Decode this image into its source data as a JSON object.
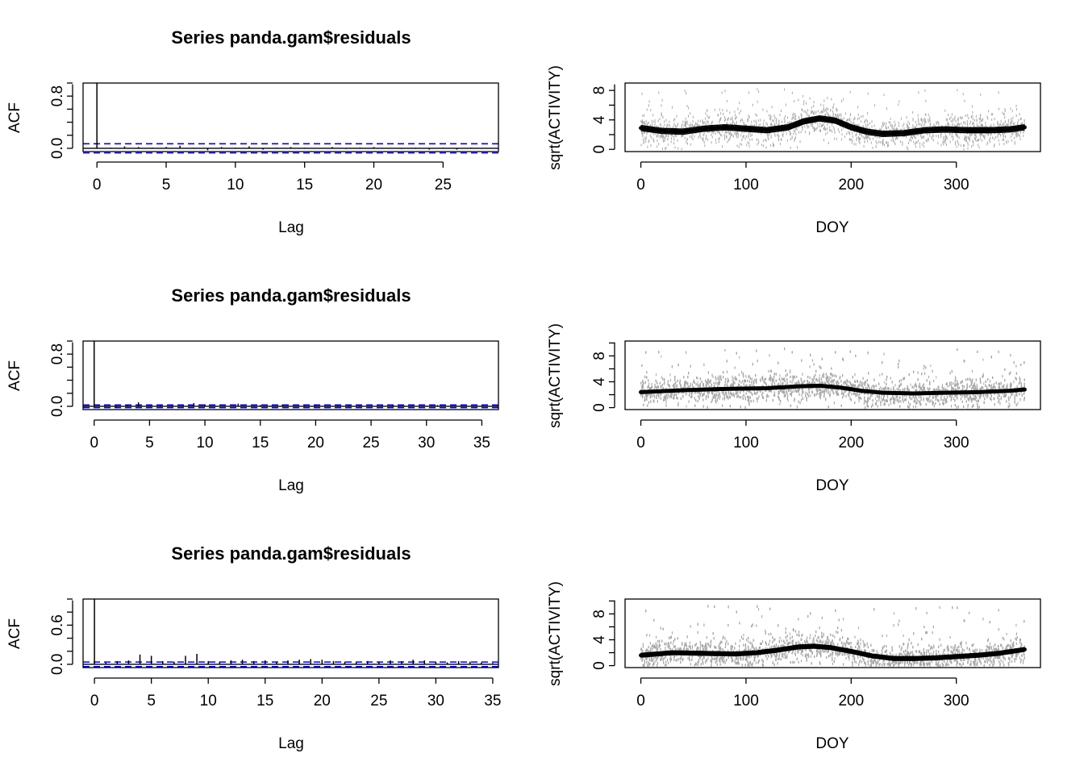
{
  "colors": {
    "axis": "#000000",
    "ci": "#0000ff",
    "points": "#a9a9a9",
    "smooth": "#000000"
  },
  "chart_data": [
    {
      "type": "bar",
      "panel": "acf-1",
      "title": "Series  panda.gam$residuals",
      "xlabel": "Lag",
      "ylabel": "ACF",
      "xlim": [
        -1,
        29
      ],
      "ylim": [
        -0.05,
        1.0
      ],
      "xticks": [
        0,
        5,
        10,
        15,
        20,
        25
      ],
      "xtick_labels": [
        "0",
        "5",
        "10",
        "15",
        "20",
        "25"
      ],
      "yticks": [
        0.0,
        0.8
      ],
      "ytick_labels": [
        "0.0",
        "0.8"
      ],
      "ci": 0.07,
      "lags": [
        0,
        1,
        2,
        3,
        4,
        5,
        6,
        7,
        8,
        9,
        10,
        11,
        12,
        13,
        14,
        15,
        16,
        17,
        18,
        19,
        20,
        21,
        22,
        23,
        24,
        25,
        26,
        27,
        28
      ],
      "values": [
        1.0,
        0.01,
        0.03,
        0.02,
        0.01,
        0.02,
        0.04,
        0.01,
        -0.03,
        0.02,
        0.01,
        0.03,
        -0.02,
        0.01,
        0.02,
        0.01,
        0.0,
        0.02,
        -0.01,
        0.01,
        0.02,
        0.0,
        -0.01,
        0.01,
        -0.02,
        0.01,
        -0.02,
        0.01,
        0.0
      ]
    },
    {
      "type": "scatter",
      "panel": "doy-1",
      "xlabel": "DOY",
      "ylabel": "sqrt(ACTIVITY)",
      "xlim": [
        -15,
        380
      ],
      "ylim": [
        -0.3,
        9
      ],
      "xticks": [
        0,
        100,
        200,
        300
      ],
      "xtick_labels": [
        "0",
        "100",
        "200",
        "300"
      ],
      "yticks": [
        0,
        4,
        8
      ],
      "ytick_labels": [
        "0",
        "4",
        "8"
      ],
      "smooth": {
        "x": [
          0,
          20,
          40,
          60,
          80,
          100,
          120,
          140,
          155,
          170,
          185,
          200,
          215,
          230,
          250,
          270,
          290,
          310,
          330,
          350,
          365
        ],
        "y": [
          2.9,
          2.5,
          2.4,
          2.8,
          3.0,
          2.8,
          2.6,
          3.0,
          3.8,
          4.2,
          3.9,
          3.0,
          2.4,
          2.1,
          2.2,
          2.6,
          2.7,
          2.6,
          2.6,
          2.7,
          3.0
        ]
      },
      "band": 0.35,
      "scatter_density": 1800,
      "scatter_max": 8.2
    },
    {
      "type": "bar",
      "panel": "acf-2",
      "title": "Series  panda.gam$residuals",
      "xlabel": "Lag",
      "ylabel": "ACF",
      "xlim": [
        -1,
        36.5
      ],
      "ylim": [
        -0.05,
        1.0
      ],
      "xticks": [
        0,
        5,
        10,
        15,
        20,
        25,
        30,
        35
      ],
      "xtick_labels": [
        "0",
        "5",
        "10",
        "15",
        "20",
        "25",
        "30",
        "35"
      ],
      "yticks": [
        0.0,
        0.8
      ],
      "ytick_labels": [
        "0.0",
        "0.8"
      ],
      "ci": 0.02,
      "lags": [
        0,
        1,
        2,
        3,
        4,
        5,
        6,
        7,
        8,
        9,
        10,
        11,
        12,
        13,
        14,
        15,
        16,
        17,
        18,
        19,
        20,
        21,
        22,
        23,
        24,
        25,
        26,
        27,
        28,
        29,
        30,
        31,
        32,
        33,
        34,
        35,
        36
      ],
      "values": [
        1.0,
        0.01,
        -0.02,
        0.02,
        0.06,
        0.01,
        0.02,
        0.01,
        0.02,
        0.05,
        0.03,
        0.01,
        0.0,
        0.04,
        0.01,
        0.02,
        0.01,
        0.03,
        0.0,
        0.01,
        0.02,
        0.0,
        0.01,
        0.02,
        0.01,
        0.0,
        0.01,
        0.02,
        0.01,
        0.0,
        0.01,
        0.02,
        0.0,
        0.01,
        0.0,
        0.01,
        0.0
      ]
    },
    {
      "type": "scatter",
      "panel": "doy-2",
      "xlabel": "DOY",
      "ylabel": "sqrt(ACTIVITY)",
      "xlim": [
        -15,
        380
      ],
      "ylim": [
        -0.3,
        10.3
      ],
      "xticks": [
        0,
        100,
        200,
        300
      ],
      "xtick_labels": [
        "0",
        "100",
        "200",
        "300"
      ],
      "yticks": [
        0,
        4,
        8
      ],
      "ytick_labels": [
        "0",
        "4",
        "8"
      ],
      "smooth": {
        "x": [
          0,
          40,
          80,
          120,
          150,
          170,
          190,
          210,
          230,
          260,
          290,
          320,
          350,
          365
        ],
        "y": [
          2.4,
          2.7,
          2.9,
          3.0,
          3.3,
          3.4,
          3.1,
          2.6,
          2.3,
          2.2,
          2.3,
          2.4,
          2.6,
          2.8
        ]
      },
      "band": 0.08,
      "scatter_density": 9000,
      "scatter_max": 9.2
    },
    {
      "type": "bar",
      "panel": "acf-3",
      "title": "Series  panda.gam$residuals",
      "xlabel": "Lag",
      "ylabel": "ACF",
      "xlim": [
        -1,
        35.5
      ],
      "ylim": [
        -0.05,
        1.0
      ],
      "xticks": [
        0,
        5,
        10,
        15,
        20,
        25,
        30,
        35
      ],
      "xtick_labels": [
        "0",
        "5",
        "10",
        "15",
        "20",
        "25",
        "30",
        "35"
      ],
      "yticks": [
        0.0,
        0.6
      ],
      "ytick_labels": [
        "0.0",
        "0.6"
      ],
      "ci": 0.035,
      "lags": [
        0,
        1,
        2,
        3,
        4,
        5,
        6,
        7,
        8,
        9,
        10,
        11,
        12,
        13,
        14,
        15,
        16,
        17,
        18,
        19,
        20,
        21,
        22,
        23,
        24,
        25,
        26,
        27,
        28,
        29,
        30,
        31,
        32,
        33,
        34,
        35
      ],
      "values": [
        1.0,
        0.03,
        0.05,
        0.06,
        0.15,
        0.13,
        0.05,
        0.04,
        0.13,
        0.16,
        0.05,
        0.04,
        0.06,
        0.07,
        0.05,
        0.06,
        0.04,
        0.06,
        0.07,
        0.08,
        0.07,
        0.05,
        0.04,
        0.03,
        0.05,
        0.04,
        0.06,
        0.05,
        0.07,
        0.06,
        0.04,
        0.03,
        0.05,
        0.04,
        0.03,
        0.02
      ]
    },
    {
      "type": "scatter",
      "panel": "doy-3",
      "xlabel": "DOY",
      "ylabel": "sqrt(ACTIVITY)",
      "xlim": [
        -15,
        380
      ],
      "ylim": [
        -0.3,
        10.3
      ],
      "xticks": [
        0,
        100,
        200,
        300
      ],
      "xtick_labels": [
        "0",
        "100",
        "200",
        "300"
      ],
      "yticks": [
        0,
        4,
        8
      ],
      "ytick_labels": [
        "0",
        "4",
        "8"
      ],
      "smooth": {
        "x": [
          0,
          30,
          60,
          90,
          110,
          130,
          150,
          165,
          180,
          200,
          220,
          240,
          260,
          280,
          300,
          320,
          340,
          365
        ],
        "y": [
          1.6,
          2.0,
          1.9,
          1.8,
          2.0,
          2.4,
          2.9,
          3.0,
          2.8,
          2.2,
          1.5,
          1.1,
          1.1,
          1.2,
          1.4,
          1.6,
          1.9,
          2.5
        ]
      },
      "band": 0.3,
      "scatter_density": 7000,
      "scatter_max": 9.2
    }
  ]
}
